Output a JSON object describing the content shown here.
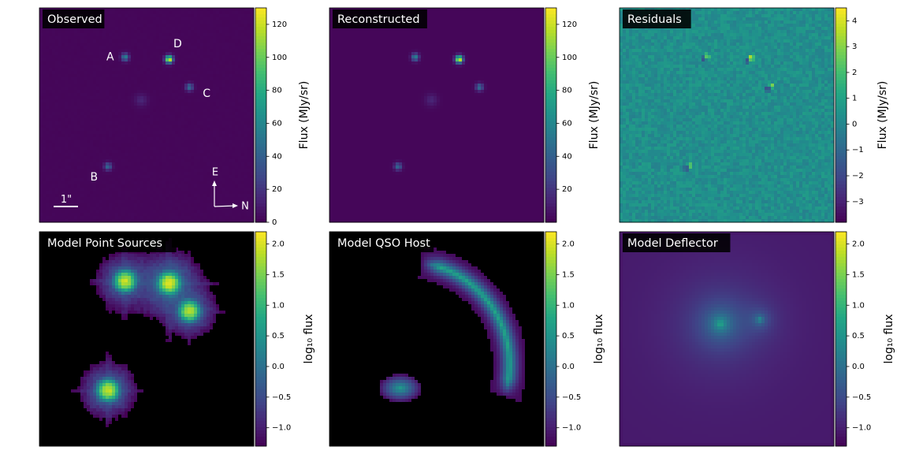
{
  "figure": {
    "description_free": true
  },
  "chart_data": [
    {
      "type": "heatmap",
      "title": "Observed",
      "colorbar": {
        "label": "Flux (MJy/sr)",
        "vmin": 0,
        "vmax": 130,
        "ticks": [
          0,
          20,
          40,
          60,
          80,
          100,
          120
        ],
        "tick_labels": [
          "0",
          "20",
          "40",
          "60",
          "80",
          "100",
          "120"
        ]
      },
      "background_value": 2,
      "sources": [
        {
          "label": "A",
          "x": 0.4,
          "y": 0.23,
          "peak": 55,
          "sigma": 0.012
        },
        {
          "label": "D",
          "x": 0.605,
          "y": 0.24,
          "peak": 128,
          "sigma": 0.012
        },
        {
          "label": "C",
          "x": 0.7,
          "y": 0.37,
          "peak": 45,
          "sigma": 0.012
        },
        {
          "label": "B",
          "x": 0.32,
          "y": 0.74,
          "peak": 42,
          "sigma": 0.012
        },
        {
          "label": "",
          "x": 0.475,
          "y": 0.43,
          "peak": 12,
          "sigma": 0.02
        }
      ],
      "image_labels": [
        {
          "text": "A",
          "x": 0.33,
          "y": 0.23
        },
        {
          "text": "D",
          "x": 0.645,
          "y": 0.17
        },
        {
          "text": "C",
          "x": 0.78,
          "y": 0.4
        },
        {
          "text": "B",
          "x": 0.255,
          "y": 0.79
        }
      ],
      "scalebar": {
        "label": "1\""
      },
      "compass": {
        "up": "E",
        "right": "N"
      }
    },
    {
      "type": "heatmap",
      "title": "Reconstructed",
      "colorbar": {
        "label": "Flux (MJy/sr)",
        "vmin": 0,
        "vmax": 130,
        "ticks": [
          20,
          40,
          60,
          80,
          100,
          120
        ],
        "tick_labels": [
          "20",
          "40",
          "60",
          "80",
          "100",
          "120"
        ]
      },
      "background_value": 2,
      "sources": [
        {
          "label": "A",
          "x": 0.4,
          "y": 0.23,
          "peak": 55,
          "sigma": 0.012
        },
        {
          "label": "D",
          "x": 0.605,
          "y": 0.24,
          "peak": 128,
          "sigma": 0.012
        },
        {
          "label": "C",
          "x": 0.7,
          "y": 0.37,
          "peak": 45,
          "sigma": 0.012
        },
        {
          "label": "B",
          "x": 0.32,
          "y": 0.74,
          "peak": 42,
          "sigma": 0.012
        },
        {
          "label": "",
          "x": 0.475,
          "y": 0.43,
          "peak": 12,
          "sigma": 0.02
        }
      ]
    },
    {
      "type": "heatmap",
      "title": "Residuals",
      "colorbar": {
        "label": "Flux (MJy/sr)",
        "vmin": -3.8,
        "vmax": 4.5,
        "ticks": [
          -3,
          -2,
          -1,
          0,
          1,
          2,
          3,
          4
        ],
        "tick_labels": [
          "−3",
          "−2",
          "−1",
          "0",
          "1",
          "2",
          "3",
          "4"
        ]
      },
      "background_value": 0.3,
      "noise": 0.5,
      "residual_features": [
        {
          "x": 0.4,
          "y": 0.23,
          "pos": 2.5,
          "neg": -2.5
        },
        {
          "x": 0.605,
          "y": 0.24,
          "pos": 4.2,
          "neg": -3.5
        },
        {
          "x": 0.7,
          "y": 0.37,
          "pos": 3.0,
          "neg": -3.8
        },
        {
          "x": 0.32,
          "y": 0.74,
          "pos": 2.5,
          "neg": -2.5
        }
      ]
    },
    {
      "type": "heatmap",
      "title": "Model Point Sources",
      "colorbar": {
        "label": "log₁₀ flux",
        "vmin": -1.3,
        "vmax": 2.2,
        "ticks": [
          -1.0,
          -0.5,
          0.0,
          0.5,
          1.0,
          1.5,
          2.0
        ],
        "tick_labels": [
          "−1.0",
          "−0.5",
          "0.0",
          "0.5",
          "1.0",
          "1.5",
          "2.0"
        ]
      },
      "mask_below": -1.3,
      "psf_sources": [
        {
          "x": 0.4,
          "y": 0.23,
          "peak": 1.9
        },
        {
          "x": 0.605,
          "y": 0.24,
          "peak": 2.1
        },
        {
          "x": 0.7,
          "y": 0.37,
          "peak": 1.8
        },
        {
          "x": 0.32,
          "y": 0.74,
          "peak": 1.9
        }
      ]
    },
    {
      "type": "heatmap",
      "title": "Model QSO Host",
      "colorbar": {
        "label": "log₁₀ flux",
        "vmin": -1.3,
        "vmax": 2.2,
        "ticks": [
          -1.0,
          -0.5,
          0.0,
          0.5,
          1.0,
          1.5,
          2.0
        ],
        "tick_labels": [
          "−1.0",
          "−0.5",
          "0.0",
          "0.5",
          "1.0",
          "1.5",
          "2.0"
        ]
      },
      "mask_below": -1.3,
      "arc": {
        "center_x": 0.36,
        "center_y": 0.62,
        "radius": 0.48,
        "angle_start_deg": -72,
        "angle_end_deg": 8,
        "width": 0.055,
        "peak": 0.8
      },
      "blob": {
        "x": 0.33,
        "y": 0.73,
        "peak": 0.3
      }
    },
    {
      "type": "heatmap",
      "title": "Model Deflector",
      "colorbar": {
        "label": "log₁₀ flux",
        "vmin": -1.3,
        "vmax": 2.2,
        "ticks": [
          -1.0,
          -0.5,
          0.0,
          0.5,
          1.0,
          1.5,
          2.0
        ],
        "tick_labels": [
          "−1.0",
          "−0.5",
          "0.0",
          "0.5",
          "1.0",
          "1.5",
          "2.0"
        ]
      },
      "background_value": -1.05,
      "galaxies": [
        {
          "x": 0.47,
          "y": 0.43,
          "peak": 1.1
        },
        {
          "x": 0.655,
          "y": 0.41,
          "peak": 0.6
        }
      ]
    }
  ]
}
